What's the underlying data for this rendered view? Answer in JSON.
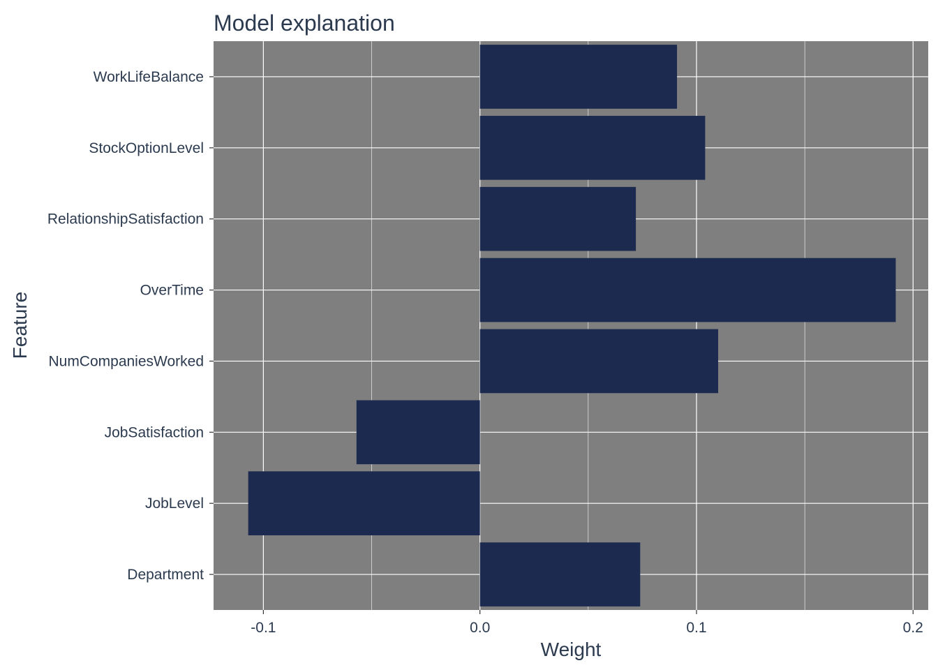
{
  "chart_data": {
    "type": "bar",
    "orientation": "horizontal",
    "title": "Model explanation",
    "xlabel": "Weight",
    "ylabel": "Feature",
    "categories": [
      "WorkLifeBalance",
      "StockOptionLevel",
      "RelationshipSatisfaction",
      "OverTime",
      "NumCompaniesWorked",
      "JobSatisfaction",
      "JobLevel",
      "Department"
    ],
    "values": [
      0.091,
      0.104,
      0.072,
      0.192,
      0.11,
      -0.057,
      -0.107,
      0.074
    ],
    "xlim": [
      -0.123,
      0.207
    ],
    "xticks": [
      -0.1,
      0.0,
      0.1,
      0.2
    ],
    "xtick_labels": [
      "-0.1",
      "0.0",
      "0.1",
      "0.2"
    ],
    "grid": true,
    "legend": "none",
    "colors": {
      "bar": "#1b2a4e",
      "panel_background": "#7f7f7f",
      "grid": "#ffffff",
      "text": "#2b3a4e"
    }
  }
}
